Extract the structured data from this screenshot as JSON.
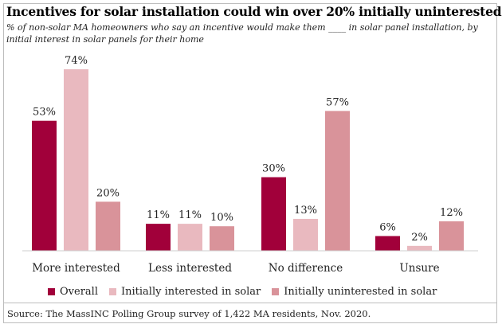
{
  "title": "Incentives for solar installation could win over 20% initially uninterested",
  "subtitle": "% of non-solar MA homeowners who say an incentive would make them ____ in solar panel installation, by initial interest in solar panels for their home",
  "source": "Source: The MassINC Polling Group survey of 1,422 MA residents, Nov. 2020.",
  "chart_data": {
    "type": "bar",
    "categories": [
      "More interested",
      "Less interested",
      "No difference",
      "Unsure"
    ],
    "series": [
      {
        "name": "Overall",
        "values": [
          53,
          11,
          30,
          6
        ],
        "labels": [
          "53%",
          "11%",
          "30%",
          "6%"
        ],
        "color": "#a1003a"
      },
      {
        "name": "Initially interested in solar",
        "values": [
          74,
          11,
          13,
          2
        ],
        "labels": [
          "74%",
          "11%",
          "13%",
          "2%"
        ],
        "color": "#e9b9bf"
      },
      {
        "name": "Initially uninterested in solar",
        "values": [
          20,
          10,
          57,
          12
        ],
        "labels": [
          "20%",
          "10%",
          "57%",
          "12%"
        ],
        "color": "#d9939a"
      }
    ],
    "ylim": [
      0,
      80
    ],
    "grid": false,
    "legend": "bottom"
  }
}
